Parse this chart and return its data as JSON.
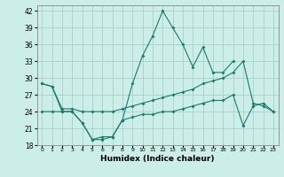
{
  "xlabel": "Humidex (Indice chaleur)",
  "x": [
    0,
    1,
    2,
    3,
    4,
    5,
    6,
    7,
    8,
    9,
    10,
    11,
    12,
    13,
    14,
    15,
    16,
    17,
    18,
    19,
    20,
    21,
    22,
    23
  ],
  "volatile_y": [
    29,
    28.5,
    24,
    24,
    22,
    19,
    19,
    19.5,
    22.5,
    29,
    34,
    37.5,
    42,
    39,
    36,
    32,
    35.5,
    31,
    31,
    33,
    null,
    null,
    null,
    null
  ],
  "upper_y": [
    29,
    28.5,
    24.5,
    24.5,
    24,
    24,
    24,
    24,
    24.5,
    25,
    25.5,
    26,
    26.5,
    27,
    27.5,
    28,
    29,
    29.5,
    30,
    31,
    33,
    25.5,
    25,
    24
  ],
  "lower_y": [
    24,
    24,
    24,
    24,
    22,
    19,
    19.5,
    19.5,
    22.5,
    23,
    23.5,
    23.5,
    24,
    24,
    24.5,
    25,
    25.5,
    26,
    26,
    27,
    21.5,
    25,
    25.5,
    24
  ],
  "color": "#1a7a6e",
  "bg_color": "#cceee8",
  "grid_color": "#aacfca",
  "ylim": [
    18,
    43
  ],
  "yticks": [
    18,
    21,
    24,
    27,
    30,
    33,
    36,
    39,
    42
  ],
  "figsize": [
    3.2,
    2.0
  ],
  "dpi": 100
}
